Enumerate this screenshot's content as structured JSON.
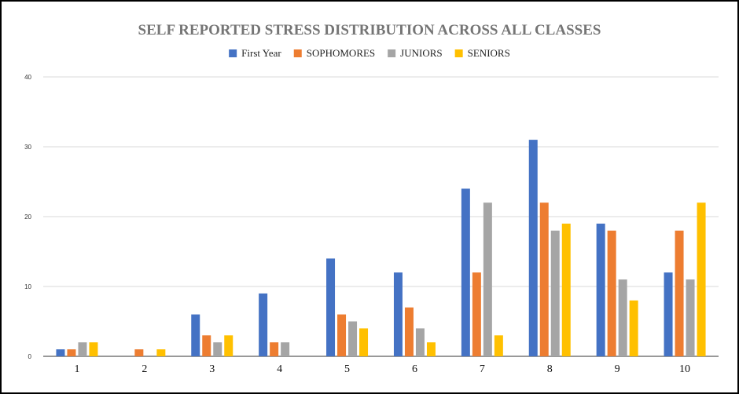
{
  "chart_data": {
    "type": "bar",
    "title": "SELF REPORTED STRESS DISTRIBUTION ACROSS ALL CLASSES",
    "xlabel": "",
    "ylabel": "",
    "categories": [
      "1",
      "2",
      "3",
      "4",
      "5",
      "6",
      "7",
      "8",
      "9",
      "10"
    ],
    "ylim": [
      0,
      40
    ],
    "yticks": [
      "0",
      "10",
      "20",
      "30",
      "40"
    ],
    "grid": true,
    "legend_position": "top",
    "series": [
      {
        "name": "First Year",
        "color": "#4472C4",
        "values": [
          1,
          0,
          6,
          9,
          14,
          12,
          24,
          31,
          19,
          12
        ]
      },
      {
        "name": "SOPHOMORES",
        "color": "#ED7D31",
        "values": [
          1,
          1,
          3,
          2,
          6,
          7,
          12,
          22,
          18,
          18
        ]
      },
      {
        "name": "JUNIORS",
        "color": "#A5A5A5",
        "values": [
          2,
          0,
          2,
          2,
          5,
          4,
          22,
          18,
          11,
          11
        ]
      },
      {
        "name": "SENIORS",
        "color": "#FFC000",
        "values": [
          2,
          1,
          3,
          0,
          4,
          2,
          3,
          19,
          8,
          22
        ]
      }
    ]
  }
}
